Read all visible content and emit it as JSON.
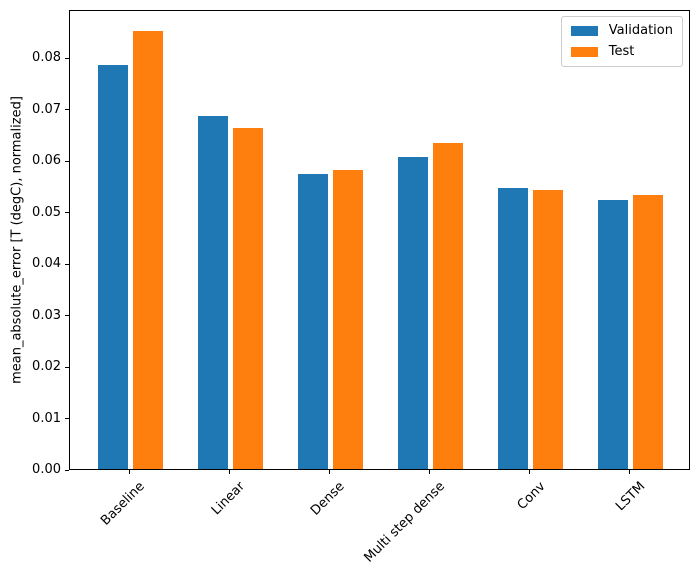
{
  "chart_data": {
    "type": "bar",
    "title": "",
    "xlabel": "",
    "ylabel": "mean_absolute_error [T (degC), normalized]",
    "categories": [
      "Baseline",
      "Linear",
      "Dense",
      "Multi step dense",
      "Conv",
      "LSTM"
    ],
    "series": [
      {
        "name": "Validation",
        "color": "#1f77b4",
        "values": [
          0.0786,
          0.0687,
          0.0573,
          0.0606,
          0.0546,
          0.0522
        ]
      },
      {
        "name": "Test",
        "color": "#ff7f0e",
        "values": [
          0.0852,
          0.0663,
          0.0582,
          0.0633,
          0.0543,
          0.0532
        ]
      }
    ],
    "ylim": [
      0,
      0.0894
    ],
    "xlim": [
      -0.602,
      5.602
    ],
    "yticks": [
      0.0,
      0.01,
      0.02,
      0.03,
      0.04,
      0.05,
      0.06,
      0.07,
      0.08
    ],
    "ytick_labels": [
      "0.00",
      "0.01",
      "0.02",
      "0.03",
      "0.04",
      "0.05",
      "0.06",
      "0.07",
      "0.08"
    ],
    "bar_width": 0.3,
    "bar_offset": 0.175,
    "x_tick_rotation": 45,
    "grid": false,
    "legend_position": "upper right",
    "spine_color": "#000000",
    "background_color": "#ffffff"
  }
}
